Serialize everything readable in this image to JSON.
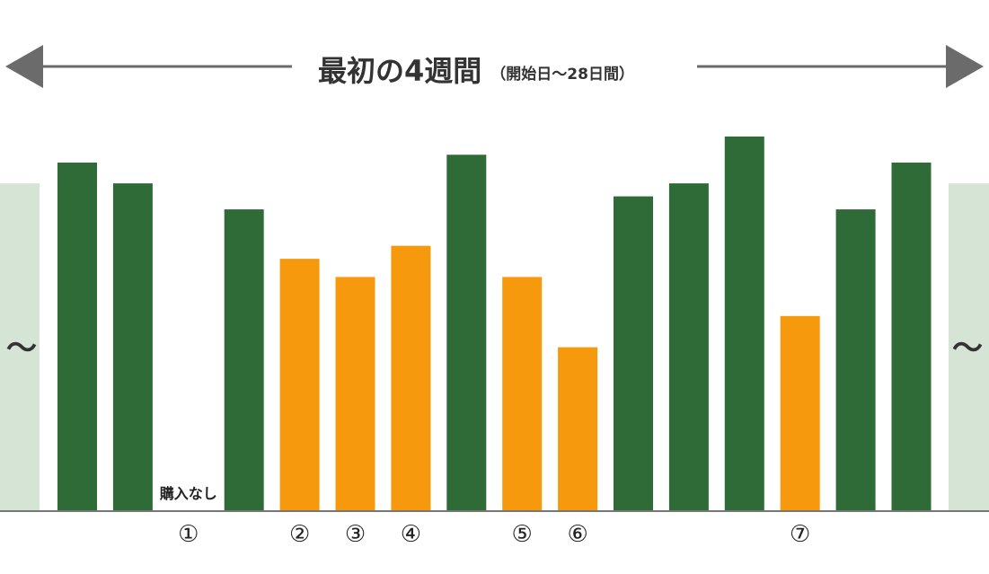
{
  "chart_data": {
    "type": "bar",
    "title": "最初の4週間",
    "subtitle": "（開始日〜28日間）",
    "no_purchase_label": "購入なし",
    "edge_marker": "〜",
    "categories": [
      "",
      "",
      "①",
      "",
      "②",
      "③",
      "④",
      "",
      "⑤",
      "⑥",
      "",
      "",
      "",
      "⑦",
      "",
      ""
    ],
    "values": [
      134,
      126,
      0,
      116,
      97,
      90,
      102,
      137,
      90,
      63,
      121,
      126,
      144,
      75,
      116,
      134
    ],
    "highlighted": [
      false,
      false,
      false,
      false,
      true,
      true,
      true,
      false,
      true,
      true,
      false,
      false,
      false,
      true,
      false,
      false
    ],
    "ylim": [
      0,
      144
    ],
    "edge_bar_value": 126,
    "colors": {
      "normal": "#2e6b37",
      "highlight": "#f7990c",
      "edge_bar": "#d6e4d6",
      "baseline": "#777777",
      "arrow": "#6b6b6b",
      "title": "#333333"
    }
  }
}
